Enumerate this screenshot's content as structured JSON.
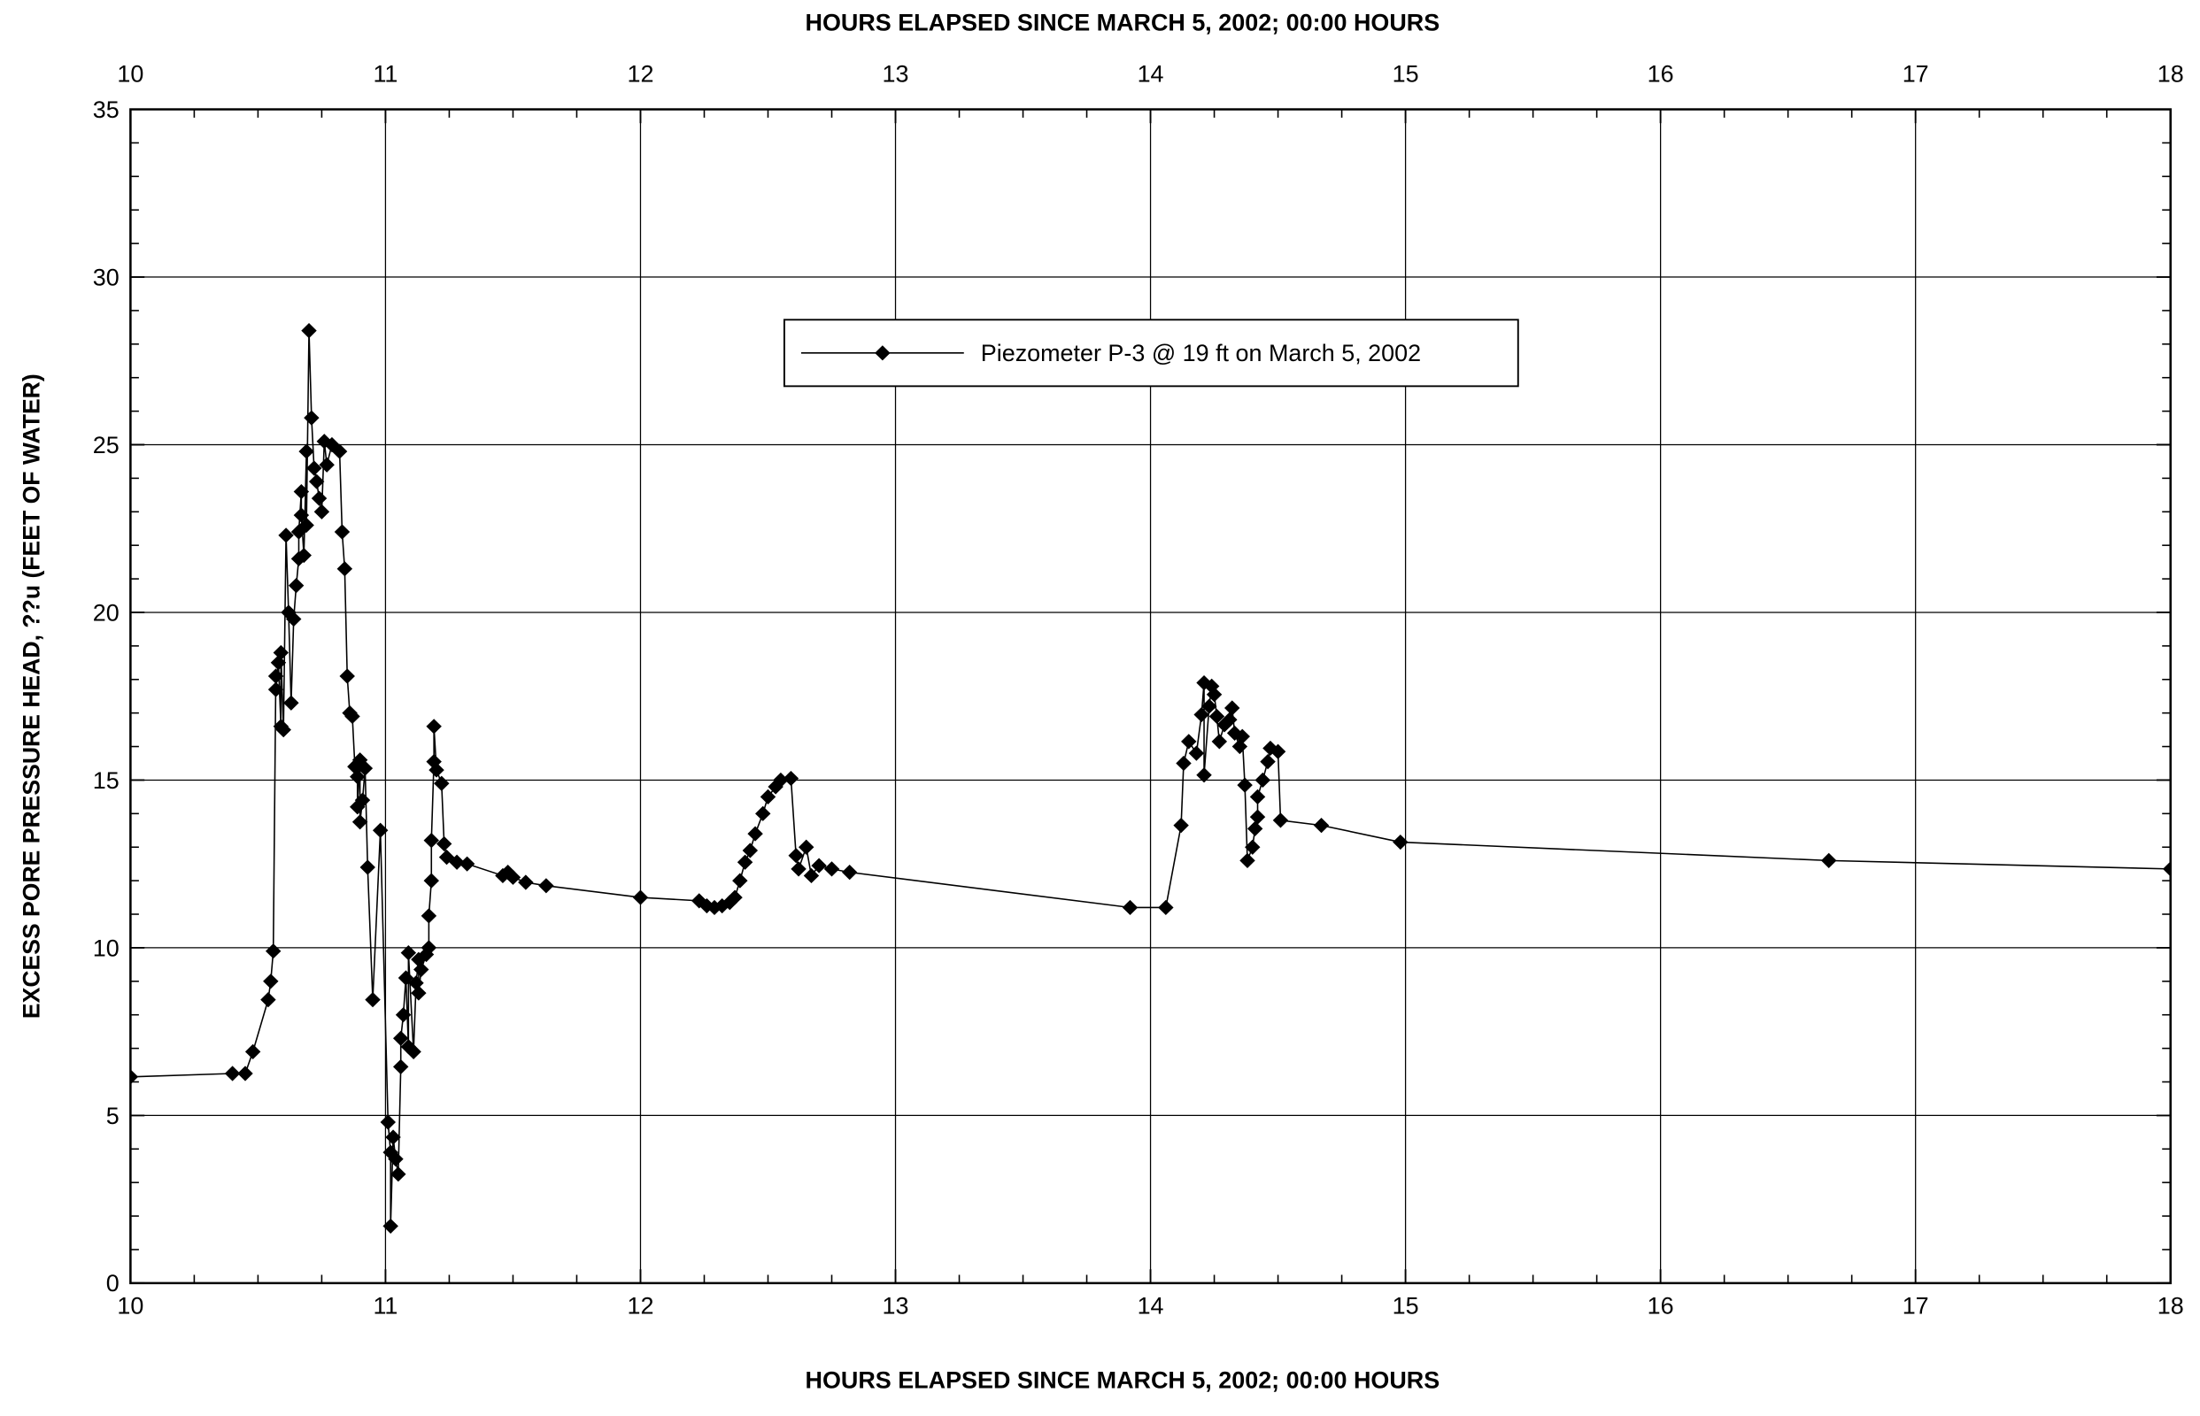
{
  "chart_data": {
    "type": "line",
    "x_label": "HOURS ELAPSED SINCE MARCH 5, 2002; 00:00 HOURS",
    "x2_label": "HOURS ELAPSED SINCE MARCH 5, 2002; 00:00 HOURS",
    "y_label": "EXCESS PORE PRESSURE HEAD, ??u (FEET OF WATER)",
    "xlim": [
      10,
      18
    ],
    "xticks": [
      10,
      11,
      12,
      13,
      14,
      15,
      16,
      17,
      18
    ],
    "ylim": [
      0,
      35
    ],
    "yticks": [
      0,
      5,
      10,
      15,
      20,
      25,
      30,
      35
    ],
    "grid": true,
    "legend": "upper center",
    "series": [
      {
        "name": "Piezometer P-3 @ 19 ft on March 5, 2002",
        "color": "#000000",
        "marker": "diamond",
        "x": [
          10.0,
          10.4,
          10.45,
          10.48,
          10.54,
          10.55,
          10.56,
          10.57,
          10.57,
          10.58,
          10.59,
          10.59,
          10.6,
          10.61,
          10.62,
          10.63,
          10.64,
          10.65,
          10.66,
          10.66,
          10.67,
          10.67,
          10.68,
          10.69,
          10.69,
          10.7,
          10.71,
          10.72,
          10.73,
          10.74,
          10.75,
          10.76,
          10.77,
          10.79,
          10.82,
          10.83,
          10.84,
          10.85,
          10.86,
          10.87,
          10.88,
          10.89,
          10.89,
          10.9,
          10.9,
          10.91,
          10.92,
          10.93,
          10.95,
          10.98,
          11.01,
          11.02,
          11.02,
          11.03,
          11.04,
          11.05,
          11.06,
          11.06,
          11.07,
          11.08,
          11.09,
          11.09,
          11.11,
          11.12,
          11.13,
          11.13,
          11.14,
          11.16,
          11.17,
          11.17,
          11.18,
          11.18,
          11.19,
          11.19,
          11.2,
          11.22,
          11.23,
          11.24,
          11.28,
          11.32,
          11.46,
          11.48,
          11.5,
          11.55,
          11.63,
          12.0,
          12.23,
          12.26,
          12.29,
          12.32,
          12.35,
          12.37,
          12.39,
          12.41,
          12.43,
          12.45,
          12.48,
          12.5,
          12.53,
          12.55,
          12.59,
          12.61,
          12.62,
          12.65,
          12.67,
          12.7,
          12.75,
          12.82,
          13.92,
          14.06,
          14.12,
          14.13,
          14.15,
          14.18,
          14.2,
          14.21,
          14.21,
          14.23,
          14.24,
          14.25,
          14.26,
          14.27,
          14.29,
          14.31,
          14.32,
          14.33,
          14.35,
          14.36,
          14.37,
          14.38,
          14.4,
          14.41,
          14.42,
          14.42,
          14.44,
          14.46,
          14.47,
          14.5,
          14.51,
          14.67,
          14.98,
          16.66,
          18.0
        ],
        "values": [
          6.15,
          6.25,
          6.25,
          6.9,
          8.45,
          9.0,
          9.9,
          18.1,
          17.7,
          18.5,
          16.6,
          18.8,
          16.5,
          22.3,
          20.0,
          17.3,
          19.8,
          20.8,
          21.6,
          22.4,
          23.6,
          22.9,
          21.7,
          24.8,
          22.6,
          28.4,
          25.8,
          24.3,
          23.9,
          23.4,
          23.0,
          25.1,
          24.4,
          25.0,
          24.8,
          22.4,
          21.3,
          18.1,
          17.0,
          16.9,
          15.4,
          15.1,
          14.2,
          15.6,
          13.75,
          14.4,
          15.35,
          12.4,
          8.45,
          13.5,
          4.8,
          3.9,
          1.7,
          4.35,
          3.7,
          3.25,
          6.45,
          7.3,
          8.0,
          9.1,
          7.05,
          9.85,
          6.9,
          8.95,
          9.65,
          8.65,
          9.35,
          9.8,
          10.0,
          10.95,
          12.0,
          13.2,
          15.55,
          16.6,
          15.3,
          14.9,
          13.1,
          12.7,
          12.55,
          12.5,
          12.15,
          12.25,
          12.1,
          11.95,
          11.85,
          11.5,
          11.4,
          11.25,
          11.2,
          11.25,
          11.35,
          11.5,
          12.0,
          12.55,
          12.9,
          13.4,
          14.0,
          14.5,
          14.8,
          15.0,
          15.05,
          12.75,
          12.35,
          13.0,
          12.15,
          12.45,
          12.35,
          12.25,
          11.2,
          11.2,
          13.65,
          15.5,
          16.15,
          15.8,
          16.95,
          17.9,
          15.15,
          17.2,
          17.8,
          17.55,
          16.9,
          16.15,
          16.65,
          16.8,
          17.15,
          16.4,
          16.0,
          16.3,
          14.85,
          12.6,
          13.0,
          13.55,
          13.9,
          14.5,
          15.0,
          15.55,
          15.95,
          15.85,
          13.8,
          13.65,
          13.15,
          12.6,
          12.35
        ]
      }
    ]
  }
}
